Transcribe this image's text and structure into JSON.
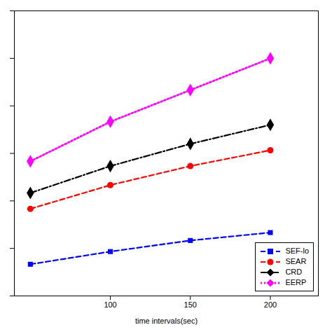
{
  "chart_data": {
    "type": "line",
    "xlabel": "time intervals(sec)",
    "x": [
      50,
      100,
      150,
      200
    ],
    "series": [
      {
        "name": "SEF-lo",
        "color": "#0000ff",
        "values": [
          2.0,
          2.8,
          3.5,
          4.0
        ],
        "marker": "square",
        "line_style": "dashed"
      },
      {
        "name": "SEAR",
        "color": "#ff0000",
        "values": [
          5.5,
          7.0,
          8.2,
          9.2
        ],
        "marker": "circle",
        "line_style": "dashed"
      },
      {
        "name": "CRD",
        "color": "#000000",
        "values": [
          6.5,
          8.2,
          9.6,
          10.8
        ],
        "marker": "diamond",
        "line_style": "dashdot"
      },
      {
        "name": "EERP",
        "color": "#ff00ff",
        "values": [
          8.5,
          11.0,
          13.0,
          15.0
        ],
        "marker": "diamond",
        "line_style": "dotted"
      }
    ],
    "xlim": [
      40,
      230
    ],
    "xticks": [
      100,
      150,
      200
    ],
    "ylim": [
      0,
      18
    ],
    "yticks": [
      0,
      3,
      6,
      9,
      12,
      15,
      18
    ],
    "tick_labels": "x",
    "grid": false,
    "legend": "lower right"
  }
}
